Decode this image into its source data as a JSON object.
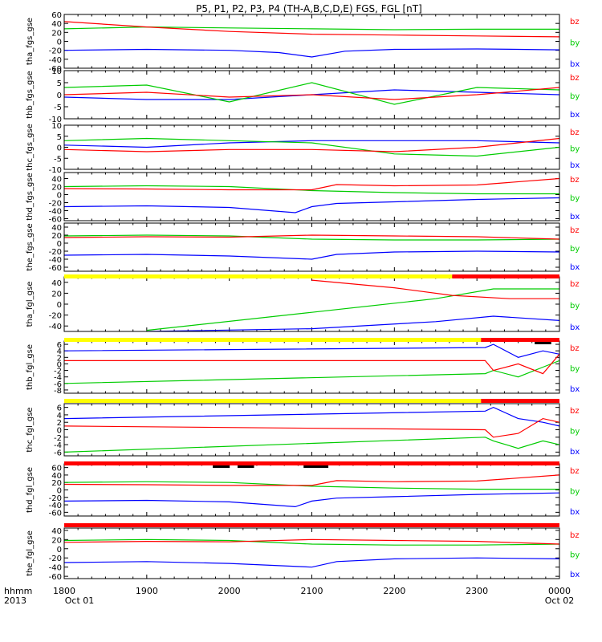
{
  "title": "P5, P1, P2, P3, P4 (TH-A,B,C,D,E) FGS, FGL [nT]",
  "xaxis": {
    "time_label": "hhmm",
    "year_label": "2013",
    "ticks": [
      "1800",
      "1900",
      "2000",
      "2100",
      "2200",
      "2300",
      "0000"
    ],
    "start_date_label": "Oct 01",
    "end_date_label": "Oct 02"
  },
  "colors": {
    "bx": "#0000ff",
    "by": "#00cc00",
    "bz": "#ff0000",
    "bar_yellow": "#ffff00",
    "bar_red": "#ff0000",
    "gap": "#000000"
  },
  "chart_data": [
    {
      "type": "line",
      "panel": "tha_fgs_gse",
      "ylabel": "tha_fgs_gse",
      "ylim": [
        -60,
        60
      ],
      "yticks": [
        "60",
        "40",
        "20",
        "0",
        "-20",
        "-40",
        "-60"
      ],
      "legend": [
        "bz",
        "by",
        "bx"
      ],
      "x_hours": [
        18,
        24
      ],
      "series": [
        {
          "name": "bx",
          "x": [
            18.0,
            19.0,
            20.0,
            20.6,
            21.0,
            21.4,
            22.0,
            23.0,
            23.5,
            24.0
          ],
          "values": [
            -20,
            -18,
            -20,
            -25,
            -35,
            -22,
            -18,
            -17,
            -18,
            -19
          ]
        },
        {
          "name": "by",
          "x": [
            18.0,
            19.0,
            20.0,
            21.0,
            22.0,
            23.0,
            24.0
          ],
          "values": [
            28,
            32,
            30,
            28,
            26,
            27,
            27
          ]
        },
        {
          "name": "bz",
          "x": [
            18.0,
            19.0,
            20.0,
            21.0,
            22.0,
            23.0,
            24.0
          ],
          "values": [
            44,
            32,
            22,
            16,
            14,
            12,
            10
          ]
        }
      ]
    },
    {
      "type": "line",
      "panel": "thb_fgs_gse",
      "ylabel": "thb_fgs_gse",
      "ylim": [
        -10,
        10
      ],
      "yticks": [
        "10",
        "5",
        "0",
        "-5",
        "-10"
      ],
      "legend": [
        "bz",
        "by",
        "bx"
      ],
      "x_hours": [
        18,
        24
      ],
      "series": [
        {
          "name": "bx",
          "x": [
            18.0,
            19.0,
            20.0,
            21.0,
            22.0,
            23.0,
            24.0
          ],
          "values": [
            -1,
            -2,
            -2,
            0,
            2,
            1,
            0
          ]
        },
        {
          "name": "by",
          "x": [
            18.0,
            19.0,
            20.0,
            21.0,
            22.0,
            23.0,
            24.0
          ],
          "values": [
            3,
            4,
            -3,
            5,
            -4,
            3,
            2
          ]
        },
        {
          "name": "bz",
          "x": [
            18.0,
            19.0,
            20.0,
            21.0,
            22.0,
            23.0,
            24.0
          ],
          "values": [
            0,
            1,
            -1,
            0,
            -2,
            0,
            3
          ]
        }
      ]
    },
    {
      "type": "line",
      "panel": "thc_fgs_gse",
      "ylabel": "thc_fgs_gse",
      "ylim": [
        -10,
        10
      ],
      "yticks": [
        "10",
        "5",
        "0",
        "-5",
        "-10"
      ],
      "legend": [
        "bz",
        "by",
        "bx"
      ],
      "x_hours": [
        18,
        24
      ],
      "series": [
        {
          "name": "bx",
          "x": [
            18.0,
            19.0,
            20.0,
            21.0,
            22.0,
            23.0,
            24.0
          ],
          "values": [
            1,
            0,
            2,
            3,
            3,
            3,
            2
          ]
        },
        {
          "name": "by",
          "x": [
            18.0,
            19.0,
            20.0,
            21.0,
            22.0,
            23.0,
            24.0
          ],
          "values": [
            3,
            4,
            3,
            2,
            -3,
            -4,
            0
          ]
        },
        {
          "name": "bz",
          "x": [
            18.0,
            19.0,
            20.0,
            21.0,
            22.0,
            23.0,
            24.0
          ],
          "values": [
            -1,
            -2,
            -1,
            -1,
            -2,
            0,
            4
          ]
        }
      ]
    },
    {
      "type": "line",
      "panel": "thd_fgs_gse",
      "ylabel": "thd_fgs_gse",
      "ylim": [
        -65,
        55
      ],
      "yticks": [
        "40",
        "20",
        "0",
        "-20",
        "-40",
        "-60"
      ],
      "legend": [
        "bz",
        "by",
        "bx"
      ],
      "x_hours": [
        18,
        24
      ],
      "series": [
        {
          "name": "bx",
          "x": [
            18.0,
            19.0,
            20.0,
            20.8,
            21.0,
            21.3,
            22.0,
            23.0,
            24.0
          ],
          "values": [
            -30,
            -28,
            -32,
            -45,
            -30,
            -22,
            -18,
            -12,
            -8
          ]
        },
        {
          "name": "by",
          "x": [
            18.0,
            19.0,
            20.0,
            21.0,
            22.0,
            23.0,
            24.0
          ],
          "values": [
            20,
            22,
            20,
            10,
            5,
            2,
            2
          ]
        },
        {
          "name": "bz",
          "x": [
            18.0,
            19.0,
            20.0,
            21.0,
            21.3,
            22.0,
            23.0,
            24.0
          ],
          "values": [
            15,
            14,
            12,
            12,
            25,
            22,
            24,
            40
          ]
        }
      ]
    },
    {
      "type": "line",
      "panel": "the_fgs_gse",
      "ylabel": "the_fgs_gse",
      "ylim": [
        -70,
        50
      ],
      "yticks": [
        "40",
        "20",
        "0",
        "-20",
        "-40",
        "-60"
      ],
      "legend": [
        "bz",
        "by",
        "bx"
      ],
      "x_hours": [
        18,
        24
      ],
      "series": [
        {
          "name": "bx",
          "x": [
            18.0,
            19.0,
            20.0,
            21.0,
            21.3,
            22.0,
            23.0,
            24.0
          ],
          "values": [
            -30,
            -28,
            -32,
            -40,
            -28,
            -22,
            -20,
            -22
          ]
        },
        {
          "name": "by",
          "x": [
            18.0,
            19.0,
            20.0,
            21.0,
            22.0,
            23.0,
            24.0
          ],
          "values": [
            18,
            20,
            18,
            10,
            8,
            8,
            10
          ]
        },
        {
          "name": "bz",
          "x": [
            18.0,
            19.0,
            20.0,
            21.0,
            22.0,
            23.0,
            24.0
          ],
          "values": [
            14,
            16,
            15,
            20,
            18,
            16,
            10
          ]
        }
      ]
    },
    {
      "type": "line",
      "panel": "tha_fgl_gse",
      "ylabel": "tha_fgl_gse",
      "ylim": [
        -50,
        50
      ],
      "yticks": [
        "40",
        "20",
        "0",
        "-20",
        "-40"
      ],
      "legend": [
        "bz",
        "by",
        "bx"
      ],
      "x_hours": [
        18,
        24
      ],
      "series": [
        {
          "name": "bx",
          "x": [
            19.0,
            21.0,
            22.5,
            23.2,
            24.0
          ],
          "values": [
            -50,
            -45,
            -32,
            -22,
            -30
          ]
        },
        {
          "name": "by",
          "x": [
            19.0,
            21.0,
            22.5,
            23.2,
            24.0
          ],
          "values": [
            -48,
            -15,
            10,
            28,
            28
          ]
        },
        {
          "name": "bz",
          "x": [
            21.0,
            22.0,
            22.7,
            23.4,
            24.0
          ],
          "values": [
            44,
            30,
            16,
            10,
            10
          ]
        }
      ]
    },
    {
      "type": "line",
      "panel": "thb_fgl_gse",
      "ylabel": "thb_fgl_gse",
      "ylim": [
        -9,
        7
      ],
      "yticks": [
        "6",
        "4",
        "2",
        "0",
        "-2",
        "-4",
        "-6",
        "-8"
      ],
      "legend": [
        "bz",
        "by",
        "bx"
      ],
      "x_hours": [
        18,
        24
      ],
      "series": [
        {
          "name": "bx",
          "x": [
            18.0,
            23.1,
            23.2,
            23.5,
            23.8,
            24.0
          ],
          "values": [
            4,
            5,
            6,
            2,
            4,
            3
          ]
        },
        {
          "name": "by",
          "x": [
            18.0,
            23.1,
            23.2,
            23.5,
            23.8,
            24.0
          ],
          "values": [
            -6,
            -3,
            -2,
            -4,
            -1,
            1
          ]
        },
        {
          "name": "bz",
          "x": [
            18.0,
            23.1,
            23.2,
            23.5,
            23.8,
            24.0
          ],
          "values": [
            1,
            1,
            -2,
            0,
            -3,
            3
          ]
        }
      ]
    },
    {
      "type": "line",
      "panel": "thc_fgl_gse",
      "ylabel": "thc_fgl_gse",
      "ylim": [
        -7,
        7
      ],
      "yticks": [
        "6",
        "4",
        "2",
        "0",
        "-2",
        "-4",
        "-6"
      ],
      "legend": [
        "bz",
        "by",
        "bx"
      ],
      "x_hours": [
        18,
        24
      ],
      "series": [
        {
          "name": "bx",
          "x": [
            18.0,
            23.1,
            23.2,
            23.5,
            23.8,
            24.0
          ],
          "values": [
            3,
            5,
            6,
            3,
            2,
            1
          ]
        },
        {
          "name": "by",
          "x": [
            18.0,
            23.1,
            23.2,
            23.5,
            23.8,
            24.0
          ],
          "values": [
            -6,
            -2,
            -3,
            -5,
            -3,
            -4
          ]
        },
        {
          "name": "bz",
          "x": [
            18.0,
            23.1,
            23.2,
            23.5,
            23.8,
            24.0
          ],
          "values": [
            1,
            0,
            -2,
            -1,
            3,
            2
          ]
        }
      ]
    },
    {
      "type": "line",
      "panel": "thd_fgl_gse",
      "ylabel": "thd_fgl_gse",
      "ylim": [
        -70,
        70
      ],
      "yticks": [
        "60",
        "40",
        "20",
        "0",
        "-20",
        "-40",
        "-60"
      ],
      "legend": [
        "bz",
        "by",
        "bx"
      ],
      "x_hours": [
        18,
        24
      ],
      "series": [
        {
          "name": "bx",
          "x": [
            18.0,
            19.0,
            20.0,
            20.8,
            21.0,
            21.3,
            22.0,
            23.0,
            24.0
          ],
          "values": [
            -30,
            -28,
            -32,
            -45,
            -30,
            -22,
            -18,
            -12,
            -8
          ]
        },
        {
          "name": "by",
          "x": [
            18.0,
            19.0,
            20.0,
            21.0,
            22.0,
            23.0,
            24.0
          ],
          "values": [
            20,
            22,
            20,
            10,
            5,
            2,
            2
          ]
        },
        {
          "name": "bz",
          "x": [
            18.0,
            19.0,
            20.0,
            21.0,
            21.3,
            22.0,
            23.0,
            24.0
          ],
          "values": [
            15,
            14,
            12,
            12,
            25,
            22,
            24,
            40
          ]
        }
      ]
    },
    {
      "type": "line",
      "panel": "the_fgl_gse",
      "ylabel": "the_fgl_gse",
      "ylim": [
        -65,
        45
      ],
      "yticks": [
        "40",
        "20",
        "0",
        "-20",
        "-40",
        "-60"
      ],
      "legend": [
        "bz",
        "by",
        "bx"
      ],
      "x_hours": [
        18,
        24
      ],
      "series": [
        {
          "name": "bx",
          "x": [
            18.0,
            19.0,
            20.0,
            21.0,
            21.3,
            22.0,
            23.0,
            24.0
          ],
          "values": [
            -30,
            -28,
            -32,
            -40,
            -28,
            -22,
            -20,
            -22
          ]
        },
        {
          "name": "by",
          "x": [
            18.0,
            19.0,
            20.0,
            21.0,
            22.0,
            23.0,
            24.0
          ],
          "values": [
            18,
            20,
            18,
            10,
            8,
            8,
            10
          ]
        },
        {
          "name": "bz",
          "x": [
            18.0,
            19.0,
            20.0,
            21.0,
            22.0,
            23.0,
            24.0
          ],
          "values": [
            14,
            16,
            15,
            20,
            18,
            16,
            10
          ]
        }
      ]
    }
  ],
  "status_bars": [
    {
      "segments": [
        {
          "color": "yellow",
          "from": 18.0,
          "to": 22.7
        },
        {
          "color": "red",
          "from": 22.7,
          "to": 24.0
        }
      ]
    },
    {
      "segments": [
        {
          "color": "yellow",
          "from": 18.0,
          "to": 23.05
        },
        {
          "color": "red",
          "from": 23.05,
          "to": 24.0
        }
      ],
      "gaps": [
        [
          23.7,
          23.9
        ]
      ]
    },
    {
      "segments": [
        {
          "color": "yellow",
          "from": 18.0,
          "to": 23.05
        },
        {
          "color": "red",
          "from": 23.05,
          "to": 24.0
        }
      ]
    },
    {
      "segments": [
        {
          "color": "red",
          "from": 18.0,
          "to": 24.0
        }
      ],
      "gaps": [
        [
          19.8,
          20.0
        ],
        [
          20.1,
          20.3
        ],
        [
          20.9,
          21.2
        ]
      ]
    },
    {
      "segments": [
        {
          "color": "red",
          "from": 18.0,
          "to": 24.0
        }
      ]
    }
  ]
}
